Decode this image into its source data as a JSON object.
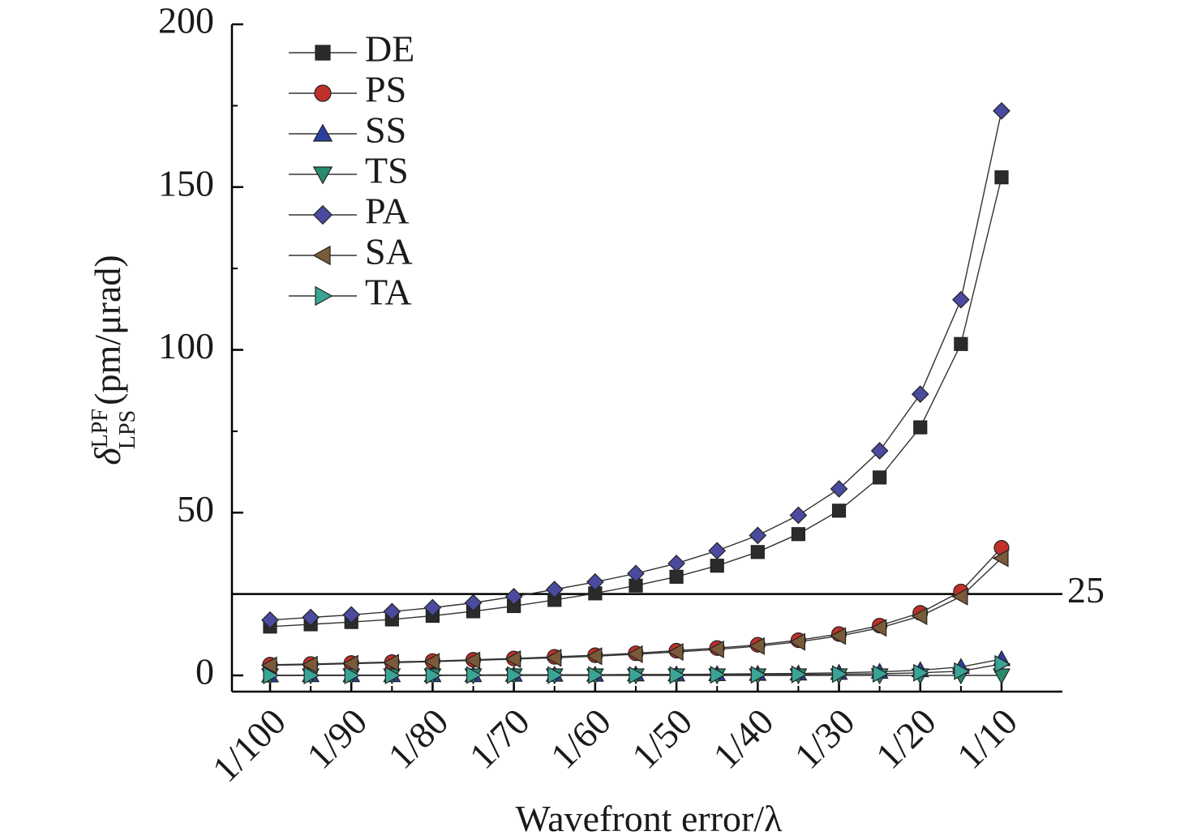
{
  "chart_data": {
    "type": "line",
    "xlabel": "Wavefront error/λ",
    "ylabel": {
      "symbol": "δ",
      "superscript": "LPF",
      "subscript": "LPS",
      "unit": "(pm/μrad)"
    },
    "x_tick_labels": [
      "1/100",
      "1/90",
      "1/80",
      "1/70",
      "1/60",
      "1/50",
      "1/40",
      "1/30",
      "1/20",
      "1/10"
    ],
    "x": [
      100,
      95,
      90,
      85,
      80,
      75,
      70,
      65,
      60,
      55,
      50,
      45,
      40,
      35,
      30,
      25,
      20,
      15,
      10
    ],
    "x_axis_note": "x values are the denominator N of wavefront error 1/N",
    "ylim": [
      0,
      200
    ],
    "y_ticks": [
      0,
      50,
      100,
      150,
      200
    ],
    "grid": false,
    "legend_position": "top-left",
    "reference_line": {
      "y": 25,
      "label": "25"
    },
    "series": [
      {
        "name": "DE",
        "marker": "square",
        "color": "#2b2b2b",
        "values": [
          15,
          15.7,
          16.4,
          17.2,
          18.3,
          19.7,
          21.3,
          23.2,
          25.2,
          27.6,
          30.3,
          33.7,
          37.9,
          43.4,
          50.6,
          60.8,
          76.2,
          101.8,
          153
        ]
      },
      {
        "name": "PS",
        "marker": "circle",
        "color": "#c0302a",
        "values": [
          3.3,
          3.5,
          3.8,
          4.1,
          4.4,
          4.8,
          5.2,
          5.7,
          6.2,
          6.8,
          7.6,
          8.4,
          9.4,
          10.8,
          12.7,
          15.3,
          19.2,
          25.8,
          39.2
        ]
      },
      {
        "name": "SS",
        "marker": "triangle-up",
        "color": "#2a3f9e",
        "values": [
          0,
          0.1,
          0.1,
          0.1,
          0.1,
          0.1,
          0.2,
          0.2,
          0.2,
          0.3,
          0.3,
          0.4,
          0.5,
          0.6,
          0.8,
          1.1,
          1.6,
          2.6,
          5
        ]
      },
      {
        "name": "TS",
        "marker": "triangle-down",
        "color": "#2a8a6e",
        "values": [
          0,
          0,
          0,
          0,
          0,
          0,
          0,
          0,
          0,
          0,
          0,
          0,
          0,
          0,
          0,
          0,
          0,
          0,
          0
        ]
      },
      {
        "name": "PA",
        "marker": "diamond",
        "color": "#4a4a9e",
        "values": [
          17,
          17.8,
          18.6,
          19.6,
          20.8,
          22.3,
          24.2,
          26.4,
          28.7,
          31.3,
          34.4,
          38.3,
          43,
          49.2,
          57.3,
          69,
          86.4,
          115.4,
          173.4
        ]
      },
      {
        "name": "SA",
        "marker": "triangle-left",
        "color": "#7a5a38",
        "values": [
          3.1,
          3.3,
          3.6,
          3.9,
          4.2,
          4.6,
          5,
          5.4,
          5.9,
          6.5,
          7.2,
          8,
          9,
          10.3,
          12.1,
          14.6,
          18.2,
          24.2,
          36
        ]
      },
      {
        "name": "TA",
        "marker": "triangle-right",
        "color": "#3aa596",
        "values": [
          0,
          0,
          0,
          0,
          0,
          0.1,
          0.1,
          0.1,
          0.1,
          0.1,
          0.1,
          0.2,
          0.2,
          0.3,
          0.4,
          0.5,
          0.8,
          1.3,
          3.5
        ]
      }
    ]
  }
}
